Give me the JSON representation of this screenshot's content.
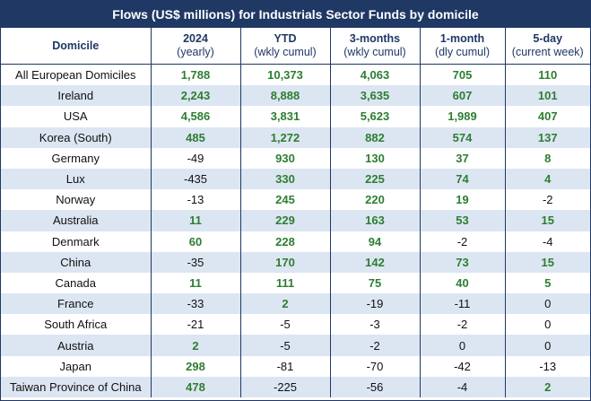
{
  "title": "Flows (US$ millions) for Industrials Sector Funds by domicile",
  "header": {
    "domicile": "Domicile",
    "columns": [
      {
        "top": "2024",
        "sub": "(yearly)"
      },
      {
        "top": "YTD",
        "sub": "(wkly cumul)"
      },
      {
        "top": "3-months",
        "sub": "(wkly cumul)"
      },
      {
        "top": "1-month",
        "sub": "(dly cumul)"
      },
      {
        "top": "5-day",
        "sub": "(current week)"
      }
    ]
  },
  "rows": [
    {
      "name": "All European Domiciles",
      "values": [
        "1,788",
        "10,373",
        "4,063",
        "705",
        "110"
      ]
    },
    {
      "name": "Ireland",
      "values": [
        "2,243",
        "8,888",
        "3,635",
        "607",
        "101"
      ]
    },
    {
      "name": "USA",
      "values": [
        "4,586",
        "3,831",
        "5,623",
        "1,989",
        "407"
      ]
    },
    {
      "name": "Korea (South)",
      "values": [
        "485",
        "1,272",
        "882",
        "574",
        "137"
      ]
    },
    {
      "name": "Germany",
      "values": [
        "-49",
        "930",
        "130",
        "37",
        "8"
      ]
    },
    {
      "name": "Lux",
      "values": [
        "-435",
        "330",
        "225",
        "74",
        "4"
      ]
    },
    {
      "name": "Norway",
      "values": [
        "-13",
        "245",
        "220",
        "19",
        "-2"
      ]
    },
    {
      "name": "Australia",
      "values": [
        "11",
        "229",
        "163",
        "53",
        "15"
      ]
    },
    {
      "name": "Denmark",
      "values": [
        "60",
        "228",
        "94",
        "-2",
        "-4"
      ]
    },
    {
      "name": "China",
      "values": [
        "-35",
        "170",
        "142",
        "73",
        "15"
      ]
    },
    {
      "name": "Canada",
      "values": [
        "11",
        "111",
        "75",
        "40",
        "5"
      ]
    },
    {
      "name": "France",
      "values": [
        "-33",
        "2",
        "-19",
        "-11",
        "0"
      ]
    },
    {
      "name": "South Africa",
      "values": [
        "-21",
        "-5",
        "-3",
        "-2",
        "0"
      ]
    },
    {
      "name": "Austria",
      "values": [
        "2",
        "-5",
        "-2",
        "0",
        "0"
      ]
    },
    {
      "name": "Japan",
      "values": [
        "298",
        "-81",
        "-70",
        "-42",
        "-13"
      ]
    },
    {
      "name": "Taiwan Province of China",
      "values": [
        "478",
        "-225",
        "-56",
        "-4",
        "2"
      ]
    }
  ],
  "colors": {
    "header_bg": "#1f3864",
    "positive": "#2e7d32",
    "alt_row": "#dce6f2"
  }
}
